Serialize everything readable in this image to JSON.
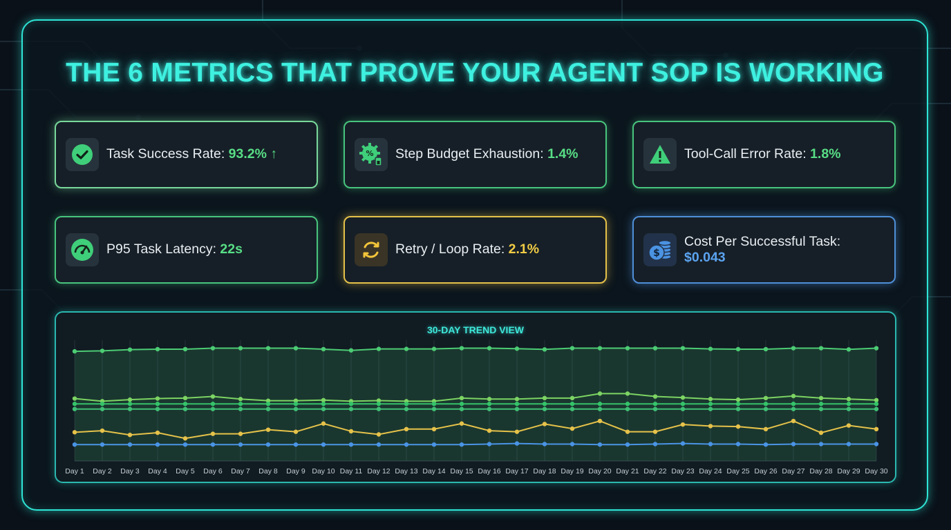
{
  "title": "THE 6 METRICS THAT PROVE YOUR AGENT SOP IS WORKING",
  "colors": {
    "green": "#58de86",
    "yellow": "#f2cc45",
    "blue": "#5ba3f0",
    "accent": "#3ef0e0"
  },
  "metrics": [
    {
      "label": "Task Success Rate:",
      "value": "93.2%",
      "trend": "↑",
      "icon": "check-circle-icon"
    },
    {
      "label": "Step Budget Exhaustion:",
      "value": "1.4%",
      "icon": "percent-gear-icon"
    },
    {
      "label": "Tool-Call Error Rate:",
      "value": "1.8%",
      "icon": "warning-triangle-icon"
    },
    {
      "label": "P95 Task Latency:",
      "value": "22s",
      "icon": "speedometer-icon"
    },
    {
      "label": "Retry / Loop Rate:",
      "value": "2.1%",
      "icon": "refresh-loop-icon"
    },
    {
      "label": "Cost Per Successful Task:",
      "value": "$0.043",
      "icon": "coin-stack-icon"
    }
  ],
  "chart_data": {
    "type": "line",
    "title": "30-DAY TREND VIEW",
    "categories": [
      "Day 1",
      "Day 2",
      "Day 3",
      "Day 4",
      "Day 5",
      "Day 6",
      "Day 7",
      "Day 8",
      "Day 9",
      "Day 10",
      "Day 11",
      "Day 12",
      "Day 13",
      "Day 14",
      "Day 15",
      "Day 16",
      "Day 17",
      "Day 18",
      "Day 19",
      "Day 20",
      "Day 21",
      "Day 22",
      "Day 23",
      "Day 24",
      "Day 25",
      "Day 26",
      "Day 27",
      "Day 28",
      "Day 29",
      "Day 30"
    ],
    "ylim": [
      0,
      100
    ],
    "grid": true,
    "series": [
      {
        "color": "#4ccc74",
        "area": true,
        "values": [
          90.8,
          91.2,
          92.2,
          92.6,
          92.6,
          93.4,
          93.4,
          93.4,
          93.4,
          92.6,
          91.6,
          92.8,
          92.8,
          92.8,
          93.4,
          93.4,
          93.0,
          92.4,
          93.4,
          93.4,
          93.4,
          93.4,
          93.4,
          92.8,
          92.6,
          92.6,
          93.4,
          93.4,
          92.4,
          93.4
        ]
      },
      {
        "color": "#7cd463",
        "values": [
          51.7,
          49.5,
          50.8,
          51.7,
          52.1,
          53.4,
          51.3,
          49.9,
          49.9,
          50.4,
          49.5,
          50.0,
          49.5,
          49.5,
          52.1,
          51.3,
          51.3,
          52.1,
          52.1,
          55.8,
          55.8,
          53.4,
          52.5,
          51.3,
          50.8,
          52.1,
          53.8,
          52.1,
          51.3,
          50.4
        ]
      },
      {
        "color": "#35c36a",
        "values": [
          47.3,
          47.3,
          47.3,
          47.3,
          47.3,
          47.3,
          47.3,
          47.3,
          47.3,
          47.3,
          47.3,
          47.3,
          47.3,
          47.3,
          47.3,
          47.3,
          47.3,
          47.3,
          47.3,
          47.3,
          47.3,
          47.3,
          47.3,
          47.3,
          47.3,
          47.3,
          47.3,
          47.3,
          47.3,
          47.3
        ]
      },
      {
        "color": "#3fbe74",
        "values": [
          43.0,
          43.0,
          43.0,
          43.0,
          43.0,
          43.0,
          43.0,
          43.0,
          43.0,
          43.0,
          43.0,
          43.0,
          43.0,
          43.0,
          43.0,
          43.0,
          43.0,
          43.0,
          43.0,
          43.0,
          43.0,
          43.0,
          43.0,
          43.0,
          43.0,
          43.0,
          43.0,
          43.0,
          43.0,
          43.0
        ]
      },
      {
        "color": "#e6c24a",
        "values": [
          23.8,
          25.1,
          21.6,
          23.4,
          18.7,
          22.5,
          22.5,
          25.9,
          24.2,
          31.0,
          24.6,
          22.0,
          26.4,
          26.4,
          31.0,
          25.1,
          24.2,
          30.6,
          26.8,
          33.1,
          24.2,
          24.2,
          30.2,
          28.9,
          28.5,
          26.4,
          33.1,
          23.4,
          29.4,
          26.4
        ]
      },
      {
        "color": "#4a94e6",
        "values": [
          13.6,
          13.6,
          13.6,
          13.6,
          13.6,
          13.6,
          13.6,
          13.6,
          13.6,
          13.6,
          13.6,
          13.6,
          13.6,
          13.6,
          13.6,
          14.0,
          14.5,
          14.0,
          14.0,
          13.6,
          13.6,
          14.0,
          14.5,
          14.0,
          14.0,
          13.6,
          14.0,
          14.0,
          14.0,
          14.0
        ]
      }
    ]
  }
}
